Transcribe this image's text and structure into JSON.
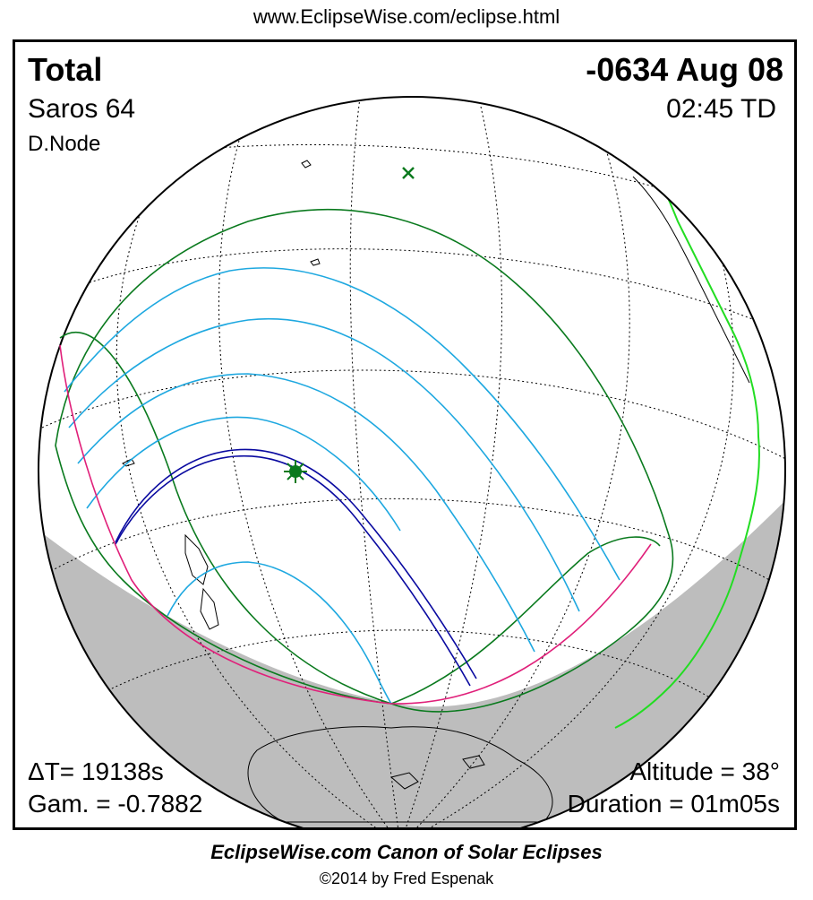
{
  "header": {
    "url": "www.EclipseWise.com/eclipse.html"
  },
  "eclipse": {
    "type": "Total",
    "date": "-0634 Aug 08",
    "saros": "Saros  64",
    "time": "02:45 TD",
    "node": "D.Node",
    "delta_t": "ΔT=  19138s",
    "gamma": "Gam. = -0.7882",
    "altitude": "Altitude = 38°",
    "duration": "Duration = 01m05s"
  },
  "footer": {
    "title": "EclipseWise.com Canon of Solar Eclipses",
    "copyright": "©2014 by Fred Espenak"
  },
  "colors": {
    "night_shade": "#bdbdbd",
    "penumbral_limit": "#0a7a1e",
    "partial_curves": "#1ea8e0",
    "central_path": "#0a0aa0",
    "rise_set_curve": "#e0207a",
    "coastline_sunlit": "#22dd22",
    "coastline": "#000000",
    "graticule": "#000000",
    "greatest_eclipse_marker": "#0a7a1e",
    "subsolar_marker": "#0a7a1e"
  },
  "markers": {
    "greatest_eclipse": "star-icon",
    "subsolar_point": "cross-icon"
  }
}
